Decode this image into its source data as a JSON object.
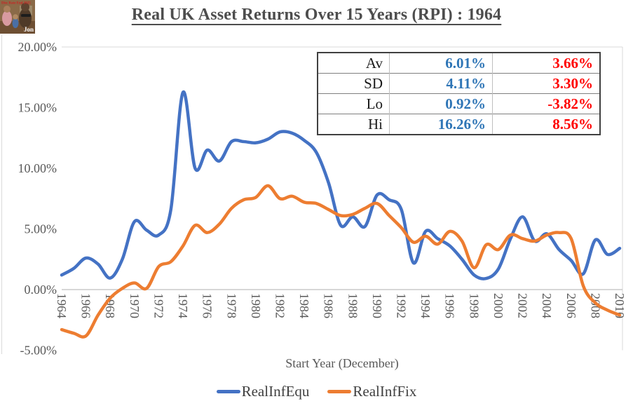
{
  "logo": {
    "top_text": "Disc Rate End 2025",
    "signature": "Jon"
  },
  "title": "Real UK Asset Returns Over 15 Years (RPI) : 1964",
  "stats_table": {
    "equity_color": "#2E75B6",
    "fixed_color": "#FF0000",
    "rows": [
      {
        "label": "Av",
        "equity": "6.01%",
        "fixed": "3.66%"
      },
      {
        "label": "SD",
        "equity": "4.11%",
        "fixed": "3.30%"
      },
      {
        "label": "Lo",
        "equity": "0.92%",
        "fixed": "-3.82%"
      },
      {
        "label": "Hi",
        "equity": "16.26%",
        "fixed": "8.56%"
      }
    ]
  },
  "chart_data": {
    "type": "line",
    "title": "Real UK Asset Returns Over 15 Years (RPI) : 1964",
    "xlabel": "Start Year (December)",
    "ylabel": "",
    "xlim": [
      1964,
      2010
    ],
    "ylim": [
      -5,
      20
    ],
    "grid": "zero-line-only",
    "legend_position": "bottom",
    "x_ticks": [
      1964,
      1966,
      1968,
      1970,
      1972,
      1974,
      1976,
      1978,
      1980,
      1982,
      1984,
      1986,
      1988,
      1990,
      1992,
      1994,
      1996,
      1998,
      2000,
      2002,
      2004,
      2006,
      2008,
      2010
    ],
    "y_ticks": [
      {
        "v": 20,
        "label": "20.00%"
      },
      {
        "v": 15,
        "label": "15.00%"
      },
      {
        "v": 10,
        "label": "10.00%"
      },
      {
        "v": 5,
        "label": "5.00%"
      },
      {
        "v": 0,
        "label": "0.00%"
      },
      {
        "v": -5,
        "label": "-5.00%"
      }
    ],
    "x": [
      1964,
      1965,
      1966,
      1967,
      1968,
      1969,
      1970,
      1971,
      1972,
      1973,
      1974,
      1975,
      1976,
      1977,
      1978,
      1979,
      1980,
      1981,
      1982,
      1983,
      1984,
      1985,
      1986,
      1987,
      1988,
      1989,
      1990,
      1991,
      1992,
      1993,
      1994,
      1995,
      1996,
      1997,
      1998,
      1999,
      2000,
      2001,
      2002,
      2003,
      2004,
      2005,
      2006,
      2007,
      2008,
      2009,
      2010
    ],
    "series": [
      {
        "name": "RealInfEqu",
        "color": "#4472C4",
        "values": [
          1.2,
          1.75,
          2.6,
          2.1,
          0.95,
          2.5,
          5.6,
          4.9,
          4.5,
          6.6,
          16.26,
          10.0,
          11.5,
          10.6,
          12.2,
          12.2,
          12.1,
          12.4,
          13.0,
          12.9,
          12.3,
          11.3,
          8.8,
          5.3,
          6.0,
          5.2,
          7.8,
          7.4,
          6.6,
          2.2,
          4.8,
          4.2,
          3.6,
          2.5,
          1.2,
          0.92,
          1.7,
          4.2,
          6.0,
          4.0,
          4.6,
          3.3,
          2.4,
          1.3,
          4.1,
          2.9,
          3.4
        ]
      },
      {
        "name": "RealInfFix",
        "color": "#ED7D31",
        "values": [
          -3.3,
          -3.6,
          -3.82,
          -2.1,
          -0.7,
          0.1,
          0.55,
          0.1,
          1.9,
          2.3,
          3.6,
          5.3,
          4.7,
          5.4,
          6.7,
          7.4,
          7.6,
          8.56,
          7.5,
          7.7,
          7.2,
          7.1,
          6.6,
          6.1,
          6.2,
          6.7,
          7.1,
          6.1,
          5.1,
          3.9,
          4.4,
          3.75,
          4.8,
          4.0,
          1.8,
          3.7,
          3.3,
          4.5,
          4.2,
          4.0,
          4.5,
          4.7,
          4.2,
          0.3,
          -1.1,
          -1.7,
          -2.1
        ]
      }
    ],
    "summary": {
      "RealInfEqu": {
        "Av": 6.01,
        "SD": 4.11,
        "Lo": 0.92,
        "Hi": 16.26
      },
      "RealInfFix": {
        "Av": 3.66,
        "SD": 3.3,
        "Lo": -3.82,
        "Hi": 8.56
      }
    }
  }
}
